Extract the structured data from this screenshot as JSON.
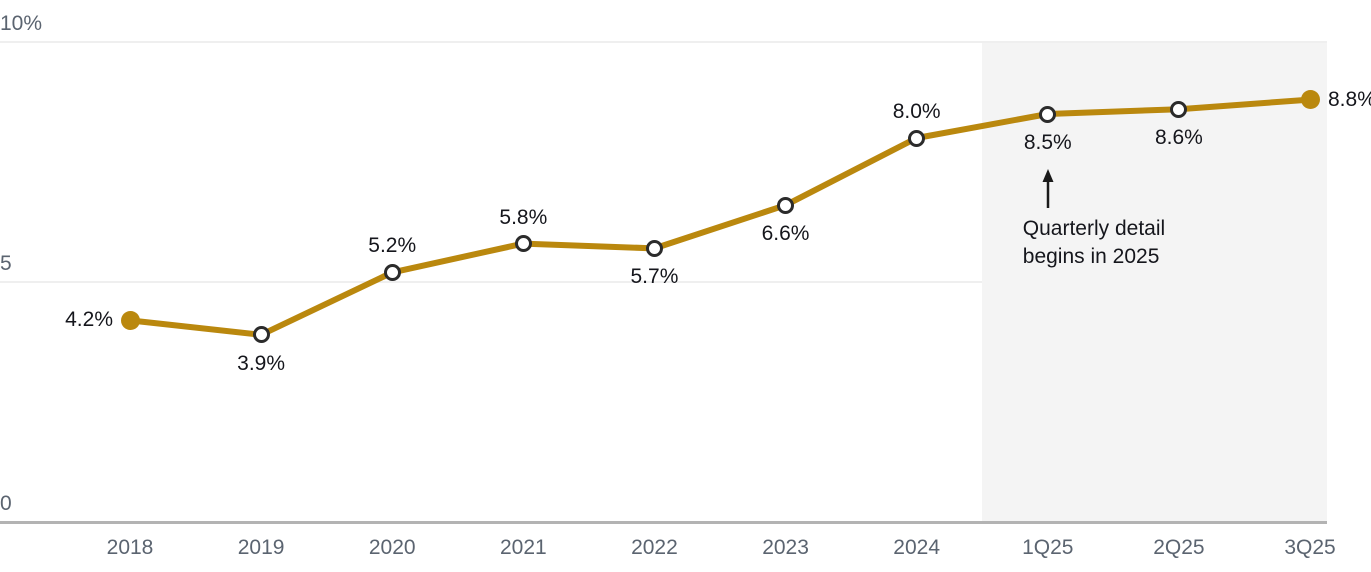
{
  "chart_data": {
    "type": "line",
    "title": "",
    "xlabel": "",
    "ylabel": "",
    "categories": [
      "2018",
      "2019",
      "2020",
      "2021",
      "2022",
      "2023",
      "2024",
      "1Q25",
      "2Q25",
      "3Q25"
    ],
    "values": [
      4.2,
      3.9,
      5.2,
      5.8,
      5.7,
      6.6,
      8.0,
      8.5,
      8.6,
      8.8
    ],
    "point_labels": [
      "4.2%",
      "3.9%",
      "5.2%",
      "5.8%",
      "5.7%",
      "6.6%",
      "8.0%",
      "8.5%",
      "8.6%",
      "8.8%"
    ],
    "label_positions": [
      "left",
      "below",
      "above",
      "above",
      "below",
      "below",
      "above",
      "below",
      "below",
      "right"
    ],
    "markers": [
      "filled",
      "open",
      "open",
      "open",
      "open",
      "open",
      "open",
      "open",
      "open",
      "filled"
    ],
    "ylim": [
      0,
      10
    ],
    "y_ticks": [
      {
        "value": 10,
        "label": "10%"
      },
      {
        "value": 5,
        "label": "5"
      },
      {
        "value": 0,
        "label": "0"
      }
    ],
    "grid": "horizontal",
    "legend": "none",
    "highlight_region": {
      "from_category": "1Q25",
      "to_category": "3Q25"
    },
    "annotation": {
      "text": "Quarterly detail begins in 2025",
      "arrow": "up",
      "points_to_category": "1Q25"
    },
    "colors": {
      "line": "#BA880E",
      "filled_marker": "#BA880E",
      "open_marker_ring": "#2B2B2B",
      "open_marker_fill": "#FFFFFF",
      "highlight_bg": "#F4F4F4",
      "grid_line": "#EFEFEF",
      "axis_line": "#B3B3B3",
      "tick_text": "#5B6470",
      "label_text": "#15161C",
      "annotation_text": "#15161C",
      "annotation_arrow": "#1A1A1A"
    }
  }
}
